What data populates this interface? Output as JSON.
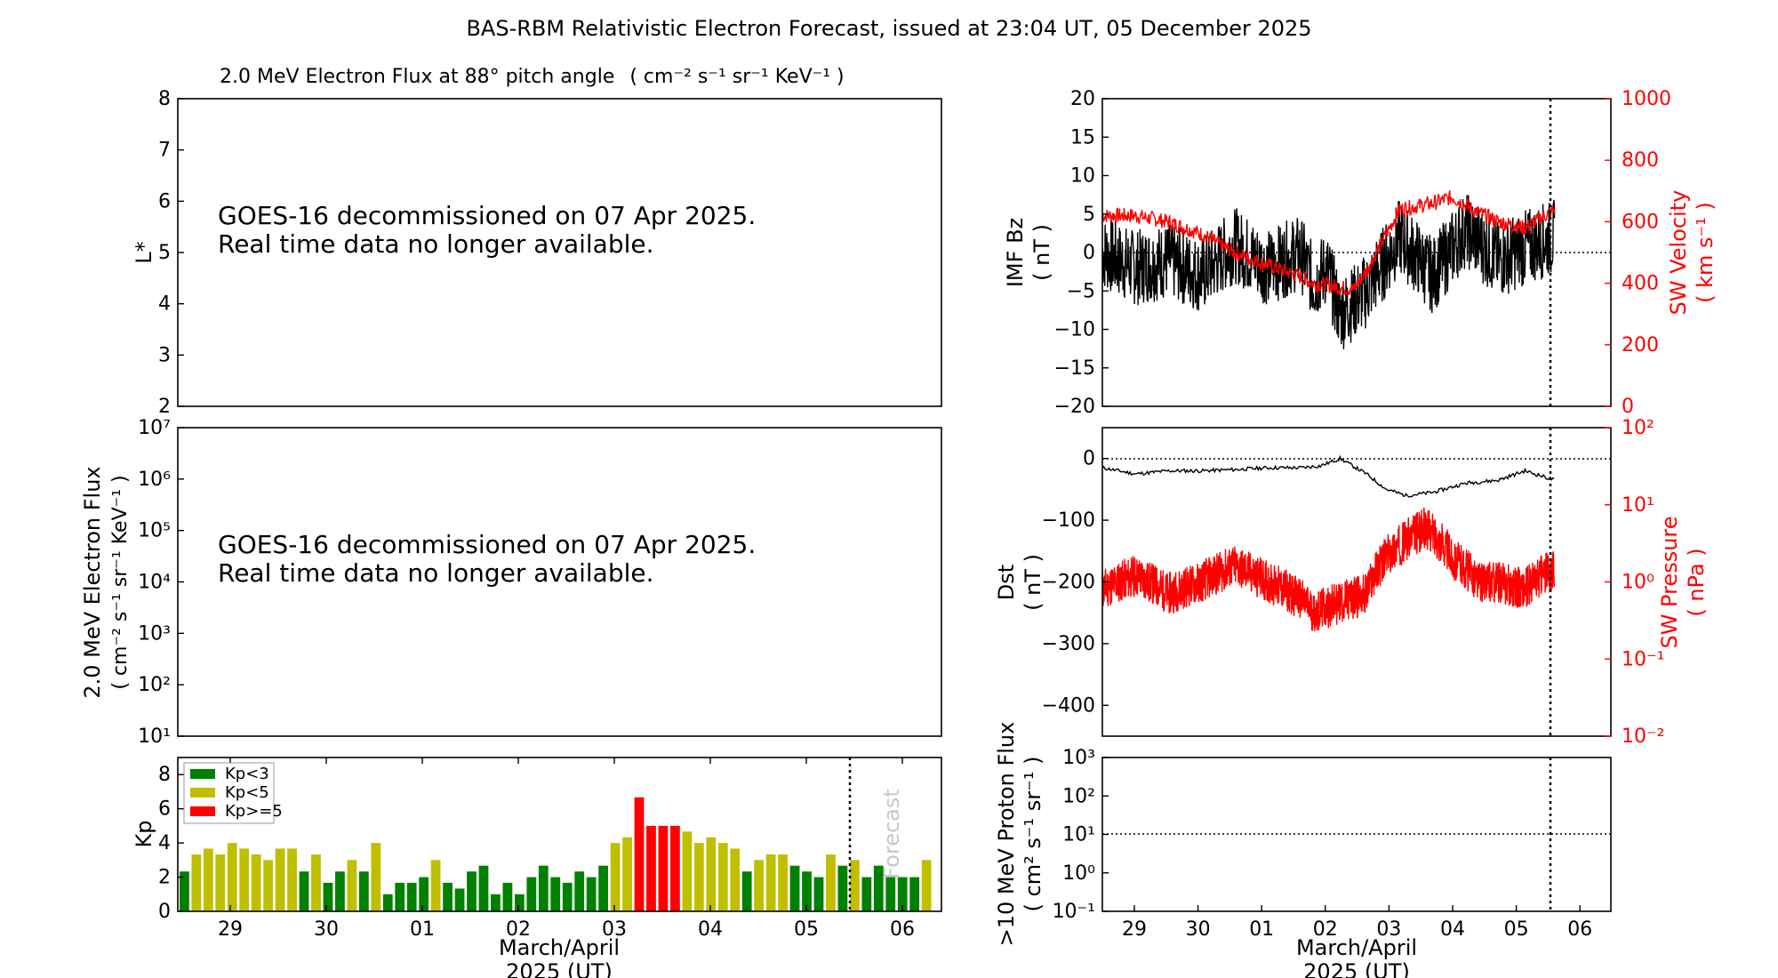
{
  "page": {
    "title": "BAS-RBM Relativistic Electron Forecast, issued at 23:04 UT, 05 December 2025"
  },
  "colors": {
    "kp_low": "#008000",
    "kp_mid": "#bfbf00",
    "kp_high": "#ff0000",
    "bz": "#000000",
    "sw": "#ff0000"
  },
  "chart_data": [
    {
      "type": "heatmap",
      "id": "lstar",
      "title": "2.0 MeV Electron Flux at 88° pitch angle",
      "title_units": "( cm⁻² s⁻¹ sr⁻¹ KeV⁻¹ )",
      "ylabel": "L*",
      "ylim": [
        2,
        8
      ],
      "yticks": [
        "2",
        "3",
        "4",
        "5",
        "6",
        "7",
        "8"
      ],
      "message_line1": "GOES-16 decommissioned on 07 Apr 2025.",
      "message_line2": "Real time data no longer available."
    },
    {
      "type": "line",
      "id": "electron_flux",
      "ylabel_line1": "2.0 MeV Electron Flux",
      "ylabel_line2": "( cm⁻² s⁻¹ sr⁻¹ KeV⁻¹ )",
      "yscale": "log",
      "ylim": [
        10,
        10000000
      ],
      "yticks": [
        "10¹",
        "10²",
        "10³",
        "10⁴",
        "10⁵",
        "10⁶",
        "10⁷"
      ],
      "message_line1": "GOES-16 decommissioned on 07 Apr 2025.",
      "message_line2": "Real time data no longer available."
    },
    {
      "type": "bar",
      "id": "kp",
      "ylabel": "Kp",
      "ylim": [
        0,
        9
      ],
      "yticks": [
        "0",
        "2",
        "4",
        "6",
        "8"
      ],
      "xticks": [
        "29",
        "30",
        "01",
        "02",
        "03",
        "04",
        "05",
        "06"
      ],
      "xlabel_line1": "March/April",
      "xlabel_line2": "2025 (UT)",
      "forecast_label": "Forecast",
      "legend": [
        "Kp<3",
        "Kp<5",
        "Kp>=5"
      ],
      "legend_position": "top-left",
      "values": [
        2.33,
        3.33,
        3.67,
        3.33,
        4.0,
        3.67,
        3.33,
        3.0,
        3.67,
        3.67,
        2.33,
        3.33,
        1.67,
        2.33,
        3.0,
        2.33,
        4.0,
        1.0,
        1.67,
        1.67,
        2.0,
        3.0,
        1.67,
        1.33,
        2.33,
        2.67,
        1.0,
        1.67,
        1.0,
        2.0,
        2.67,
        2.0,
        1.67,
        2.33,
        2.0,
        2.67,
        4.0,
        4.33,
        6.67,
        5.0,
        5.0,
        5.0,
        4.67,
        4.0,
        4.33,
        4.0,
        3.67,
        2.33,
        3.0,
        3.33,
        3.33,
        2.67,
        2.33,
        2.0,
        3.33,
        2.67,
        3.0,
        2.0,
        2.67,
        2.0,
        2.0,
        2.0,
        3.0
      ]
    },
    {
      "type": "line",
      "id": "imf",
      "ylabel_line1": "IMF Bz",
      "ylabel_line2": "( nT )",
      "ylim": [
        -20,
        20
      ],
      "yticks": [
        "20",
        "15",
        "10",
        "5",
        "0",
        "−5",
        "−10",
        "−15",
        "−20"
      ],
      "y2label_line1": "SW Velocity",
      "y2label_line2": "( km s⁻¹ )",
      "y2lim": [
        0,
        1000
      ],
      "y2ticks": [
        "1000",
        "800",
        "600",
        "400",
        "200",
        "0"
      ],
      "series": [
        {
          "name": "IMF Bz",
          "x": [
            0,
            0.5,
            1.0,
            1.5,
            2.0,
            2.5,
            3.0,
            3.2,
            3.4,
            3.6,
            4.0,
            4.5,
            5.0,
            5.5,
            6.0,
            6.5,
            6.85
          ],
          "values": [
            0,
            -2,
            -1,
            -3,
            1,
            -2,
            0,
            -4,
            -2,
            -8,
            -5,
            2,
            -3,
            3,
            -1,
            1,
            2
          ]
        },
        {
          "name": "SW Velocity",
          "x": [
            0,
            0.5,
            1.0,
            1.5,
            2.0,
            2.5,
            3.0,
            3.2,
            3.5,
            3.8,
            4.0,
            4.5,
            5.0,
            5.3,
            5.6,
            6.0,
            6.4,
            6.85
          ],
          "values": [
            620,
            620,
            600,
            560,
            500,
            460,
            420,
            400,
            390,
            380,
            440,
            640,
            660,
            680,
            640,
            600,
            580,
            640
          ]
        }
      ]
    },
    {
      "type": "line",
      "id": "dst",
      "ylabel_line1": "Dst",
      "ylabel_line2": "( nT )",
      "ylim": [
        -450,
        50
      ],
      "yticks": [
        "0",
        "−100",
        "−200",
        "−300",
        "−400"
      ],
      "y2label_line1": "SW Pressure",
      "y2label_line2": "( nPa )",
      "y2scale": "log",
      "y2lim": [
        0.01,
        100
      ],
      "y2ticks": [
        "10²",
        "10¹",
        "10⁰",
        "10⁻¹",
        "10⁻²"
      ],
      "series": [
        {
          "name": "Dst",
          "x": [
            0,
            0.5,
            1.0,
            1.5,
            2.0,
            2.5,
            3.0,
            3.3,
            3.6,
            4.0,
            4.3,
            4.6,
            5.0,
            5.5,
            6.0,
            6.4,
            6.85
          ],
          "values": [
            -15,
            -25,
            -20,
            -20,
            -18,
            -15,
            -15,
            -12,
            0,
            -25,
            -50,
            -60,
            -55,
            -40,
            -35,
            -20,
            -35
          ]
        },
        {
          "name": "SW Pressure",
          "x": [
            0,
            0.5,
            1.0,
            1.5,
            2.0,
            2.5,
            3.0,
            3.2,
            3.5,
            4.0,
            4.5,
            4.9,
            5.3,
            5.7,
            6.0,
            6.4,
            6.85
          ],
          "values": [
            0.8,
            1.2,
            0.7,
            1.0,
            1.6,
            1.0,
            0.6,
            0.4,
            0.5,
            0.7,
            3.0,
            5.0,
            2.0,
            1.0,
            1.0,
            0.8,
            1.5
          ]
        }
      ]
    },
    {
      "type": "line",
      "id": "proton",
      "ylabel_line1": ">10 MeV Proton Flux",
      "ylabel_line2": "( cm² s⁻¹ sr⁻¹ )",
      "yscale": "log",
      "ylim": [
        0.1,
        1000
      ],
      "yticks": [
        "10³",
        "10²",
        "10¹",
        "10⁰",
        "10⁻¹"
      ],
      "threshold": 10,
      "xticks": [
        "29",
        "30",
        "01",
        "02",
        "03",
        "04",
        "05",
        "06"
      ],
      "xlabel_line1": "March/April",
      "xlabel_line2": "2025 (UT)"
    }
  ]
}
